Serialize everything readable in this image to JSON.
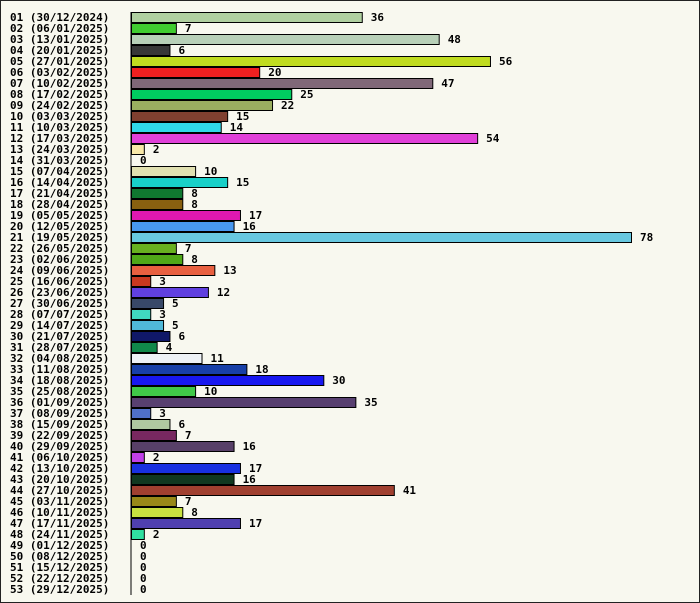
{
  "chart_data": {
    "type": "bar",
    "orientation": "horizontal",
    "title": "",
    "xlabel": "",
    "ylabel": "",
    "grid": false,
    "xlim": [
      0,
      78
    ],
    "categories": [
      "01 (30/12/2024)",
      "02 (06/01/2025)",
      "03 (13/01/2025)",
      "04 (20/01/2025)",
      "05 (27/01/2025)",
      "06 (03/02/2025)",
      "07 (10/02/2025)",
      "08 (17/02/2025)",
      "09 (24/02/2025)",
      "10 (03/03/2025)",
      "11 (10/03/2025)",
      "12 (17/03/2025)",
      "13 (24/03/2025)",
      "14 (31/03/2025)",
      "15 (07/04/2025)",
      "16 (14/04/2025)",
      "17 (21/04/2025)",
      "18 (28/04/2025)",
      "19 (05/05/2025)",
      "20 (12/05/2025)",
      "21 (19/05/2025)",
      "22 (26/05/2025)",
      "23 (02/06/2025)",
      "24 (09/06/2025)",
      "25 (16/06/2025)",
      "26 (23/06/2025)",
      "27 (30/06/2025)",
      "28 (07/07/2025)",
      "29 (14/07/2025)",
      "30 (21/07/2025)",
      "31 (28/07/2025)",
      "32 (04/08/2025)",
      "33 (11/08/2025)",
      "34 (18/08/2025)",
      "35 (25/08/2025)",
      "36 (01/09/2025)",
      "37 (08/09/2025)",
      "38 (15/09/2025)",
      "39 (22/09/2025)",
      "40 (29/09/2025)",
      "41 (06/10/2025)",
      "42 (13/10/2025)",
      "43 (20/10/2025)",
      "44 (27/10/2025)",
      "45 (03/11/2025)",
      "46 (10/11/2025)",
      "47 (17/11/2025)",
      "48 (24/11/2025)",
      "49 (01/12/2025)",
      "50 (08/12/2025)",
      "51 (15/12/2025)",
      "52 (22/12/2025)",
      "53 (29/12/2025)"
    ],
    "values": [
      36,
      7,
      48,
      6,
      56,
      20,
      47,
      25,
      22,
      15,
      14,
      54,
      2,
      0,
      10,
      15,
      8,
      8,
      17,
      16,
      78,
      7,
      8,
      13,
      3,
      12,
      5,
      3,
      5,
      6,
      4,
      11,
      18,
      30,
      10,
      35,
      3,
      6,
      7,
      16,
      2,
      17,
      16,
      41,
      7,
      8,
      17,
      2,
      0,
      0,
      0,
      0,
      0
    ],
    "colors": [
      "#b0d0a0",
      "#40cc30",
      "#b8d0b8",
      "#383838",
      "#c0dc20",
      "#f02020",
      "#806878",
      "#00cc60",
      "#9aae60",
      "#804030",
      "#30d8e8",
      "#e040d8",
      "#f8e8a8",
      "#ffffff",
      "#e0e0b0",
      "#18d0c8",
      "#107830",
      "#886010",
      "#e018b0",
      "#4898f0",
      "#68c8e0",
      "#68b020",
      "#50a818",
      "#e86040",
      "#c83820",
      "#6040e0",
      "#384868",
      "#40d8c0",
      "#50b8d8",
      "#101868",
      "#10884a",
      "#eef2f6",
      "#1840a8",
      "#1818f0",
      "#40c848",
      "#584070",
      "#5070c8",
      "#b0c8a0",
      "#782860",
      "#584068",
      "#c040e8",
      "#1830e0",
      "#103820",
      "#a04030",
      "#988818",
      "#c8e040",
      "#5040b0",
      "#30e0a0",
      "#ffffff",
      "#ffffff",
      "#ffffff",
      "#ffffff",
      "#ffffff"
    ]
  }
}
